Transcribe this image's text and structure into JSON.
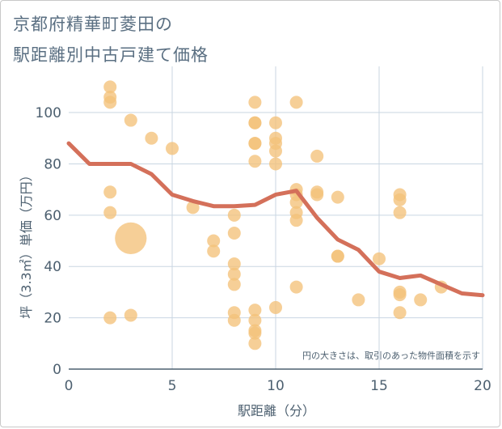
{
  "title_lines": [
    "京都府精華町菱田の",
    "駅距離別中古戸建て価格"
  ],
  "note": "円の大きさは、取引のあった物件面積を示す",
  "colors": {
    "bubble": "#f3c27a",
    "line": "#d4705a",
    "grid": "#c9d6e2",
    "axis": "#4d6070",
    "title": "#5a6f82"
  },
  "chart_data": {
    "type": "scatter",
    "xlabel": "駅距離（分）",
    "ylabel": "坪（3.3㎡）単価（万円）",
    "xlim": [
      0,
      20
    ],
    "ylim": [
      0,
      118
    ],
    "xticks": [
      0,
      5,
      10,
      15,
      20
    ],
    "yticks": [
      0,
      20,
      40,
      60,
      80,
      100
    ],
    "grid": true,
    "bubbles": [
      {
        "x": 2,
        "y": 110,
        "size": 1
      },
      {
        "x": 2,
        "y": 106,
        "size": 1
      },
      {
        "x": 2,
        "y": 104,
        "size": 1
      },
      {
        "x": 2,
        "y": 69,
        "size": 1
      },
      {
        "x": 2,
        "y": 61,
        "size": 1
      },
      {
        "x": 2,
        "y": 20,
        "size": 1
      },
      {
        "x": 3,
        "y": 51,
        "size": 6
      },
      {
        "x": 3,
        "y": 97,
        "size": 1
      },
      {
        "x": 3,
        "y": 21,
        "size": 1
      },
      {
        "x": 4,
        "y": 90,
        "size": 1
      },
      {
        "x": 5,
        "y": 86,
        "size": 1
      },
      {
        "x": 6,
        "y": 63,
        "size": 1
      },
      {
        "x": 7,
        "y": 50,
        "size": 1
      },
      {
        "x": 7,
        "y": 46,
        "size": 1
      },
      {
        "x": 8,
        "y": 60,
        "size": 1
      },
      {
        "x": 8,
        "y": 53,
        "size": 1
      },
      {
        "x": 8,
        "y": 41,
        "size": 1
      },
      {
        "x": 8,
        "y": 37,
        "size": 1
      },
      {
        "x": 8,
        "y": 33,
        "size": 1
      },
      {
        "x": 8,
        "y": 22,
        "size": 1
      },
      {
        "x": 8,
        "y": 19,
        "size": 1
      },
      {
        "x": 9,
        "y": 104,
        "size": 1
      },
      {
        "x": 9,
        "y": 96,
        "size": 1
      },
      {
        "x": 9,
        "y": 96,
        "size": 1
      },
      {
        "x": 9,
        "y": 88,
        "size": 1
      },
      {
        "x": 9,
        "y": 88,
        "size": 1
      },
      {
        "x": 9,
        "y": 81,
        "size": 1
      },
      {
        "x": 9,
        "y": 23,
        "size": 1
      },
      {
        "x": 9,
        "y": 19,
        "size": 1
      },
      {
        "x": 9,
        "y": 15,
        "size": 1
      },
      {
        "x": 9,
        "y": 14,
        "size": 1
      },
      {
        "x": 9,
        "y": 10,
        "size": 1
      },
      {
        "x": 10,
        "y": 96,
        "size": 1
      },
      {
        "x": 10,
        "y": 90,
        "size": 1
      },
      {
        "x": 10,
        "y": 88,
        "size": 1
      },
      {
        "x": 10,
        "y": 85,
        "size": 1
      },
      {
        "x": 10,
        "y": 80,
        "size": 1
      },
      {
        "x": 10,
        "y": 24,
        "size": 1
      },
      {
        "x": 11,
        "y": 104,
        "size": 1
      },
      {
        "x": 11,
        "y": 70,
        "size": 1
      },
      {
        "x": 11,
        "y": 68,
        "size": 1
      },
      {
        "x": 11,
        "y": 65,
        "size": 1
      },
      {
        "x": 11,
        "y": 61,
        "size": 1
      },
      {
        "x": 11,
        "y": 58,
        "size": 1
      },
      {
        "x": 11,
        "y": 32,
        "size": 1
      },
      {
        "x": 12,
        "y": 83,
        "size": 1
      },
      {
        "x": 12,
        "y": 69,
        "size": 1
      },
      {
        "x": 12,
        "y": 68,
        "size": 1
      },
      {
        "x": 13,
        "y": 67,
        "size": 1
      },
      {
        "x": 13,
        "y": 44,
        "size": 1
      },
      {
        "x": 13,
        "y": 44,
        "size": 1
      },
      {
        "x": 14,
        "y": 27,
        "size": 1
      },
      {
        "x": 15,
        "y": 43,
        "size": 1
      },
      {
        "x": 16,
        "y": 68,
        "size": 1
      },
      {
        "x": 16,
        "y": 66,
        "size": 1
      },
      {
        "x": 16,
        "y": 61,
        "size": 1
      },
      {
        "x": 16,
        "y": 30,
        "size": 1
      },
      {
        "x": 16,
        "y": 29,
        "size": 1
      },
      {
        "x": 16,
        "y": 22,
        "size": 1
      },
      {
        "x": 17,
        "y": 27,
        "size": 1
      },
      {
        "x": 18,
        "y": 32,
        "size": 1
      }
    ],
    "line": {
      "x": [
        0,
        1,
        2,
        3,
        4,
        5,
        6,
        7,
        8,
        9,
        10,
        11,
        12,
        13,
        14,
        15,
        16,
        17,
        18,
        19,
        20
      ],
      "y": [
        88,
        80,
        80,
        80,
        76,
        68,
        65.5,
        63.5,
        63.5,
        64,
        68,
        69.5,
        59,
        50.5,
        46.5,
        38,
        35.5,
        36.5,
        33,
        29.5,
        28.8
      ]
    }
  }
}
